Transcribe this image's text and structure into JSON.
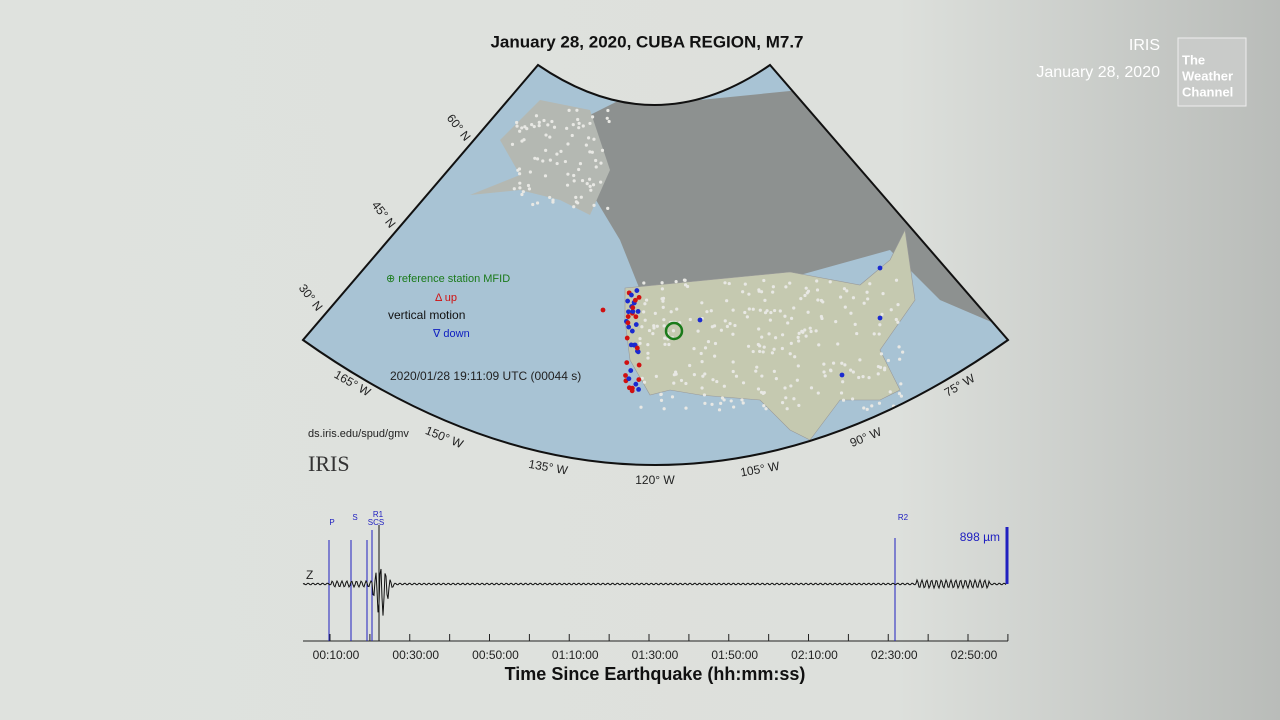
{
  "corner": {
    "source": "IRIS",
    "date": "January 28, 2020",
    "logo": [
      "The",
      "Weather",
      "Channel"
    ]
  },
  "map": {
    "title": "January 28, 2020, CUBA REGION, M7.7",
    "lat_labels": [
      "60° N",
      "45° N",
      "30° N"
    ],
    "lon_labels": [
      "165° W",
      "150° W",
      "135° W",
      "120° W",
      "105° W",
      "90° W",
      "75° W"
    ],
    "legend": {
      "reference": "⊕ reference station MFID",
      "up": "Δ up",
      "motion": "vertical motion",
      "down": "∇ down"
    },
    "timestamp": "2020/01/28 19:11:09 UTC (00044 s)",
    "url": "ds.iris.edu/spud/gmv",
    "logo": "IRIS"
  },
  "seismogram": {
    "component": "Z",
    "scale": "898 µm",
    "phases": [
      "P",
      "S",
      "SCS",
      "R1",
      "R2"
    ],
    "x_ticks": [
      "00:10:00",
      "00:30:00",
      "00:50:00",
      "01:10:00",
      "01:30:00",
      "01:50:00",
      "02:10:00",
      "02:30:00",
      "02:50:00"
    ],
    "x_label": "Time Since Earthquake (hh:mm:ss)"
  }
}
